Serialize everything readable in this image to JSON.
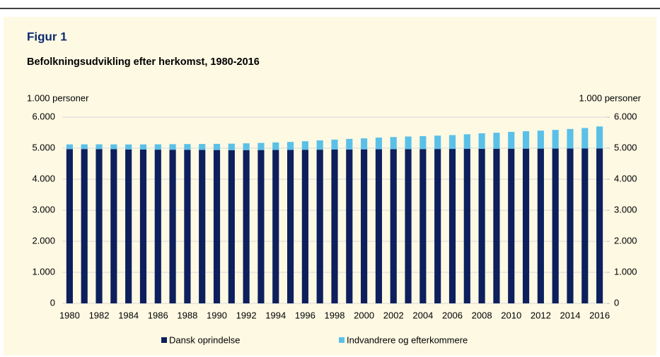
{
  "chart_data": {
    "type": "stacked_bar",
    "figure_label": "Figur 1",
    "title": "Befolkningsudvikling efter herkomst, 1980-2016",
    "y_label": "1.000 personer",
    "y2_label": "1.000 personer",
    "categories": [
      "1980",
      null,
      "1982",
      null,
      "1984",
      null,
      "1986",
      null,
      "1988",
      null,
      "1990",
      null,
      "1992",
      null,
      "1994",
      null,
      "1996",
      null,
      "1998",
      null,
      "2000",
      null,
      "2002",
      null,
      "2004",
      null,
      "2006",
      null,
      "2008",
      null,
      "2010",
      null,
      "2012",
      null,
      "2014",
      null,
      "2016"
    ],
    "series": [
      {
        "name": "Dansk oprindelse",
        "color": "#0d1f5c",
        "values": [
          4970,
          4972,
          4971,
          4966,
          4960,
          4955,
          4952,
          4950,
          4948,
          4945,
          4940,
          4937,
          4938,
          4940,
          4942,
          4945,
          4948,
          4952,
          4955,
          4958,
          4962,
          4965,
          4968,
          4970,
          4972,
          4974,
          4976,
          4978,
          4980,
          4982,
          4984,
          4985,
          4986,
          4987,
          4988,
          4989,
          4990
        ]
      },
      {
        "name": "Indvandrere og efterkommere",
        "color": "#5bc0e8",
        "values": [
          152,
          152,
          153,
          156,
          160,
          166,
          172,
          178,
          184,
          190,
          198,
          208,
          218,
          230,
          242,
          256,
          275,
          300,
          320,
          340,
          355,
          375,
          390,
          405,
          415,
          430,
          445,
          470,
          500,
          515,
          540,
          560,
          580,
          600,
          630,
          660,
          710
        ]
      }
    ],
    "ylim": [
      0,
      6000
    ],
    "yticks": [
      0,
      {
        "value": 1000,
        "label": "1.000"
      },
      {
        "value": 2000,
        "label": "2.000"
      },
      {
        "value": 3000,
        "label": "3.000"
      },
      {
        "value": 4000,
        "label": "4.000"
      },
      {
        "value": 5000,
        "label": "5.000"
      },
      {
        "value": 6000,
        "label": "6.000"
      }
    ],
    "y2lim": [
      0,
      6000
    ],
    "y2ticks": [
      0,
      {
        "value": 1000,
        "label": "1.000"
      },
      {
        "value": 2000,
        "label": "2.000"
      },
      {
        "value": 3000,
        "label": "3.000"
      },
      {
        "value": 4000,
        "label": "4.000"
      },
      {
        "value": 5000,
        "label": "5.000"
      },
      {
        "value": 6000,
        "label": "6.000"
      }
    ],
    "grid": true,
    "legend": "bottom"
  }
}
